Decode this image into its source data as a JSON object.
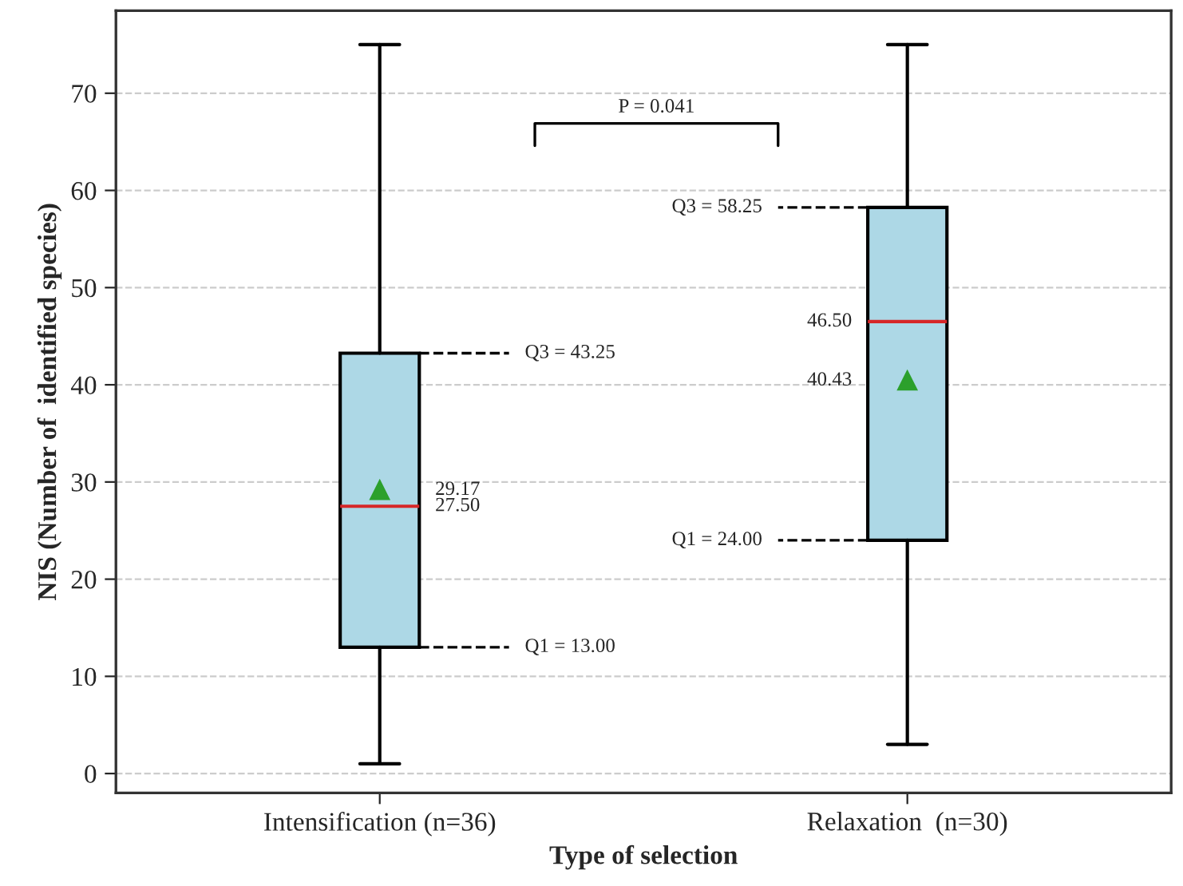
{
  "chart_data": {
    "type": "box",
    "xlabel": "Type of selection",
    "ylabel": "NIS (Number of  identified species)",
    "categories": [
      "Intensification (n=36)",
      "Relaxation  (n=30)"
    ],
    "boxes": [
      {
        "low": 1,
        "q1": 13.0,
        "median": 27.5,
        "q3": 43.25,
        "high": 75,
        "mean": 29.17
      },
      {
        "low": 3,
        "q1": 24.0,
        "median": 46.5,
        "q3": 58.25,
        "high": 75,
        "mean": 40.43
      }
    ],
    "color": "#add8e6",
    "ylim": [
      -2,
      78.5
    ],
    "yticks": [
      0,
      10,
      20,
      30,
      40,
      50,
      60,
      70
    ],
    "grid": "y",
    "annotations": [
      "Q3 = 43.25",
      "Q1 = 13.00",
      "29.17",
      "27.50",
      "Q3 = 58.25",
      "Q1 = 24.00",
      "40.43",
      "46.50",
      "P = 0.041"
    ]
  }
}
